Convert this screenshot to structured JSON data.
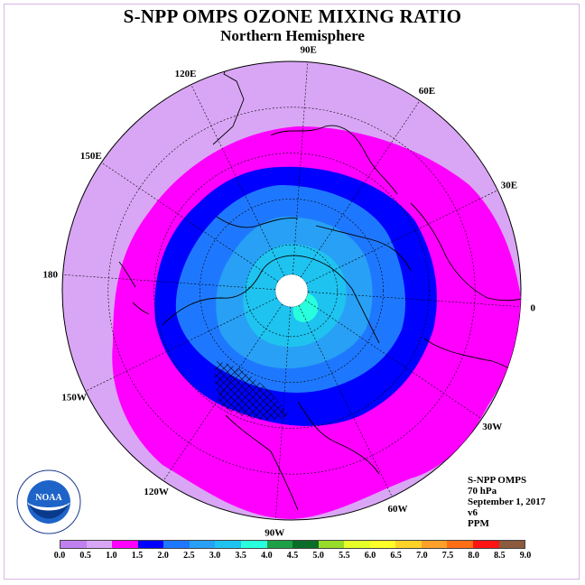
{
  "title": "S-NPP OMPS OZONE MIXING RATIO",
  "subtitle": "Northern Hemisphere",
  "info": {
    "instrument": "S-NPP OMPS",
    "level": "70 hPa",
    "date": "September 1, 2017",
    "version": "v6",
    "units": "PPM"
  },
  "logo": {
    "name": "noaa-logo",
    "text": "NOAA"
  },
  "longitude_labels": [
    {
      "lon": 90,
      "label": "90E"
    },
    {
      "lon": 60,
      "label": "60E"
    },
    {
      "lon": 30,
      "label": "30E"
    },
    {
      "lon": 0,
      "label": "0"
    },
    {
      "lon": -30,
      "label": "30W"
    },
    {
      "lon": -60,
      "label": "60W"
    },
    {
      "lon": -90,
      "label": "90W"
    },
    {
      "lon": -120,
      "label": "120W"
    },
    {
      "lon": -150,
      "label": "150W"
    },
    {
      "lon": 180,
      "label": "180"
    },
    {
      "lon": 150,
      "label": "150E"
    },
    {
      "lon": 120,
      "label": "120E"
    }
  ],
  "colors": {
    "outer_region": "#d9a6f5",
    "polar_cap": "#ffffff"
  },
  "legend": {
    "labels": [
      "0.0",
      "0.5",
      "1.0",
      "1.5",
      "2.0",
      "2.5",
      "3.0",
      "3.5",
      "4.0",
      "4.5",
      "5.0",
      "5.5",
      "6.0",
      "6.5",
      "7.0",
      "7.5",
      "8.0",
      "8.5",
      "9.0"
    ],
    "colors": [
      "#c080f0",
      "#d9a6f5",
      "#ff00ff",
      "#0000ff",
      "#1e78ff",
      "#28a0f5",
      "#1ec3f0",
      "#28ffdc",
      "#1ea046",
      "#0a6e28",
      "#96dc28",
      "#e6ff28",
      "#ffff28",
      "#ffd228",
      "#ffa028",
      "#ff6e14",
      "#ff1414",
      "#8c5a3c"
    ]
  }
}
